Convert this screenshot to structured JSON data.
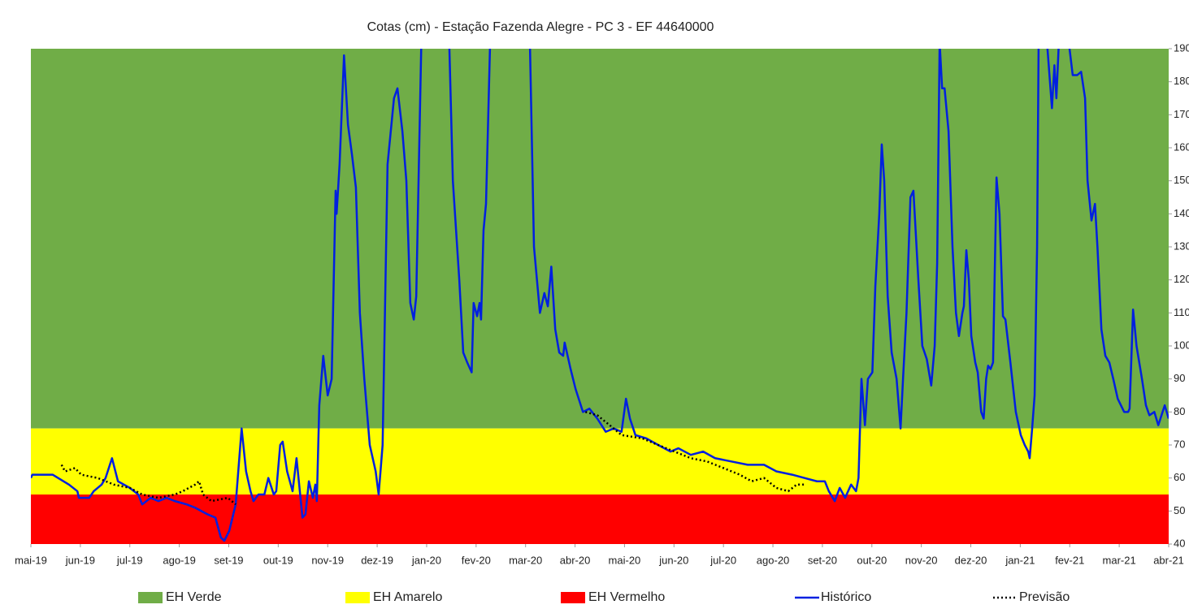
{
  "chart_data": {
    "type": "line",
    "title": "Cotas (cm) - Estação Fazenda Alegre - PC 3 - EF 44640000",
    "xlim": [
      0,
      23
    ],
    "xticks": [
      {
        "value": 0,
        "label": "mai-19"
      },
      {
        "value": 1,
        "label": "jun-19"
      },
      {
        "value": 2,
        "label": "jul-19"
      },
      {
        "value": 3,
        "label": "ago-19"
      },
      {
        "value": 4,
        "label": "set-19"
      },
      {
        "value": 5,
        "label": "out-19"
      },
      {
        "value": 6,
        "label": "nov-19"
      },
      {
        "value": 7,
        "label": "dez-19"
      },
      {
        "value": 8,
        "label": "jan-20"
      },
      {
        "value": 9,
        "label": "fev-20"
      },
      {
        "value": 10,
        "label": "mar-20"
      },
      {
        "value": 11,
        "label": "abr-20"
      },
      {
        "value": 12,
        "label": "mai-20"
      },
      {
        "value": 13,
        "label": "jun-20"
      },
      {
        "value": 14,
        "label": "jul-20"
      },
      {
        "value": 15,
        "label": "ago-20"
      },
      {
        "value": 16,
        "label": "set-20"
      },
      {
        "value": 17,
        "label": "out-20"
      },
      {
        "value": 18,
        "label": "nov-20"
      },
      {
        "value": 19,
        "label": "dez-20"
      },
      {
        "value": 20,
        "label": "jan-21"
      },
      {
        "value": 21,
        "label": "fev-21"
      },
      {
        "value": 22,
        "label": "mar-21"
      },
      {
        "value": 23,
        "label": "abr-21"
      }
    ],
    "ylim": [
      40,
      190
    ],
    "yticks": [
      40,
      50,
      60,
      70,
      80,
      90,
      100,
      110,
      120,
      130,
      140,
      150,
      160,
      170,
      180,
      190
    ],
    "bands": [
      {
        "name": "EH Verde",
        "color": "#70ad47",
        "from": 75,
        "to": 190
      },
      {
        "name": "EH Amarelo",
        "color": "#ffff00",
        "from": 55,
        "to": 75
      },
      {
        "name": "EH Vermelho",
        "color": "#ff0000",
        "from": 40,
        "to": 55
      }
    ],
    "series": [
      {
        "name": "Histórico",
        "color": "#0020e0",
        "style": "solid",
        "x": [
          0,
          0.03,
          0.44,
          0.77,
          0.94,
          0.97,
          1.18,
          1.27,
          1.43,
          1.51,
          1.64,
          1.76,
          2.0,
          2.17,
          2.25,
          2.42,
          2.58,
          2.74,
          2.91,
          3.15,
          3.32,
          3.57,
          3.73,
          3.84,
          3.91,
          4.01,
          4.14,
          4.26,
          4.35,
          4.44,
          4.5,
          4.6,
          4.72,
          4.8,
          4.91,
          4.96,
          5.04,
          5.09,
          5.18,
          5.29,
          5.37,
          5.49,
          5.55,
          5.62,
          5.7,
          5.75,
          5.78,
          5.83,
          5.91,
          6.0,
          6.08,
          6.16,
          6.18,
          6.24,
          6.33,
          6.41,
          6.49,
          6.57,
          6.65,
          6.74,
          6.85,
          6.97,
          7.03,
          7.11,
          7.21,
          7.34,
          7.41,
          7.51,
          7.59,
          7.67,
          7.74,
          7.79,
          7.89,
          7.95,
          8.38,
          8.46,
          8.53,
          8.66,
          8.74,
          8.82,
          8.91,
          8.95,
          9.02,
          9.07,
          9.1,
          9.15,
          9.2,
          9.28,
          9.4,
          9.97,
          10.09,
          10.17,
          10.29,
          10.38,
          10.45,
          10.52,
          10.6,
          10.68,
          10.76,
          10.79,
          10.91,
          11.01,
          11.16,
          11.29,
          11.45,
          11.62,
          11.78,
          11.94,
          12.03,
          12.11,
          12.22,
          12.44,
          12.68,
          12.93,
          13.09,
          13.34,
          13.59,
          13.83,
          14.16,
          14.49,
          14.82,
          15.07,
          15.39,
          15.64,
          15.89,
          16.05,
          16.13,
          16.25,
          16.35,
          16.46,
          16.58,
          16.68,
          16.73,
          16.79,
          16.86,
          16.92,
          17.01,
          17.07,
          17.15,
          17.2,
          17.25,
          17.32,
          17.4,
          17.5,
          17.58,
          17.63,
          17.7,
          17.78,
          17.84,
          17.94,
          18.02,
          18.11,
          18.2,
          18.27,
          18.32,
          18.37,
          18.42,
          18.47,
          18.55,
          18.63,
          18.7,
          18.76,
          18.83,
          18.86,
          18.91,
          18.96,
          19.01,
          19.09,
          19.14,
          19.21,
          19.26,
          19.31,
          19.35,
          19.4,
          19.45,
          19.52,
          19.58,
          19.65,
          19.7,
          19.8,
          19.91,
          20.01,
          20.09,
          20.16,
          20.19,
          20.24,
          20.29,
          20.34,
          20.37,
          20.44,
          20.54,
          20.64,
          20.69,
          20.73,
          20.78,
          20.98,
          21.06,
          21.15,
          21.23,
          21.31,
          21.36,
          21.44,
          21.51,
          21.56,
          21.64,
          21.72,
          21.8,
          21.88,
          21.97,
          22.1,
          22.18,
          22.21,
          22.28,
          22.35,
          22.46,
          22.54,
          22.61,
          22.71,
          22.79,
          22.92,
          23.0
        ],
        "values": [
          60,
          61,
          61,
          58,
          56,
          54,
          54,
          56,
          58,
          60,
          66,
          59,
          57,
          55,
          52,
          54,
          53,
          54,
          53,
          52,
          51,
          49,
          48,
          42,
          41,
          44,
          52,
          75,
          62,
          56,
          53,
          55,
          55,
          60,
          55,
          56,
          70,
          71,
          62,
          56,
          66,
          48,
          49,
          59,
          54,
          58,
          53,
          82,
          97,
          85,
          90,
          147,
          140,
          155,
          188,
          167,
          158,
          148,
          110,
          90,
          70,
          62,
          55,
          70,
          155,
          175,
          178,
          165,
          150,
          113,
          108,
          115,
          190,
          205,
          205,
          190,
          150,
          120,
          98,
          95,
          92,
          113,
          109,
          113,
          108,
          135,
          143,
          190,
          205,
          205,
          190,
          130,
          110,
          116,
          112,
          124,
          105,
          98,
          97,
          101,
          93,
          87,
          80,
          81,
          78,
          74,
          75,
          74,
          84,
          78,
          73,
          72,
          70,
          68,
          69,
          67,
          68,
          66,
          65,
          64,
          64,
          62,
          61,
          60,
          59,
          59,
          56,
          53,
          57,
          54,
          58,
          56,
          60,
          90,
          76,
          90,
          92,
          118,
          140,
          161,
          150,
          115,
          98,
          90,
          75,
          90,
          110,
          145,
          147,
          120,
          100,
          96,
          88,
          100,
          125,
          192,
          178,
          178,
          165,
          130,
          110,
          103,
          110,
          112,
          129,
          120,
          103,
          95,
          92,
          80,
          78,
          90,
          94,
          93,
          95,
          151,
          140,
          109,
          108,
          95,
          80,
          73,
          70,
          68,
          66,
          75,
          85,
          130,
          190,
          200,
          192,
          172,
          185,
          175,
          192,
          192,
          182,
          182,
          183,
          175,
          150,
          138,
          143,
          130,
          105,
          97,
          95,
          90,
          84,
          80,
          80,
          81,
          111,
          100,
          90,
          82,
          79,
          80,
          76,
          82,
          78
        ]
      },
      {
        "name": "Previsão",
        "color": "#000000",
        "style": "dotted",
        "x": [
          0.62,
          0.69,
          0.89,
          1.02,
          1.35,
          1.68,
          2.0,
          2.25,
          2.58,
          2.91,
          3.07,
          3.32,
          3.4,
          3.48,
          3.65,
          3.98,
          4.14,
          null,
          11.21,
          11.45,
          11.7,
          11.94,
          12.36,
          12.68,
          13.01,
          13.34,
          13.67,
          14.0,
          14.33,
          14.57,
          14.82,
          15.07,
          15.31,
          15.48,
          15.64
        ],
        "values": [
          64,
          62,
          63,
          61,
          60,
          58,
          57,
          55,
          54,
          55,
          56,
          58,
          59,
          55,
          53,
          54,
          52,
          null,
          80,
          79,
          76,
          73,
          72,
          70,
          68,
          66,
          65,
          63,
          61,
          59,
          60,
          57,
          56,
          58,
          58
        ]
      }
    ]
  }
}
